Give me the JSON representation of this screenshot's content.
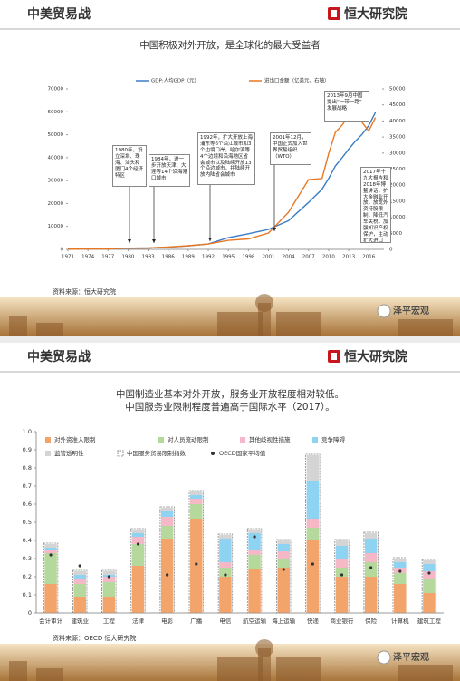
{
  "slides": [
    {
      "header_title": "中美贸易战",
      "logo": "恒大研究院",
      "source": "资料来源：恒大研究院",
      "watermark": "泽平宏观"
    },
    {
      "header_title": "中美贸易战",
      "logo": "恒大研究院",
      "source": "资料来源：OECD  恒大研究院",
      "watermark": "泽平宏观"
    }
  ],
  "chart_data": [
    {
      "type": "line",
      "title": "中国积极对外开放，是全球化的最大受益者",
      "x": [
        1971,
        1974,
        1977,
        1980,
        1983,
        1986,
        1989,
        1992,
        1995,
        1998,
        2001,
        2004,
        2007,
        2009,
        2010,
        2011,
        2012,
        2013,
        2014,
        2015,
        2016,
        2017
      ],
      "series": [
        {
          "name": "GDP:人均GDP（元）",
          "color": "#3b7dc4",
          "axis": "y",
          "values": [
            290,
            310,
            340,
            470,
            590,
            960,
            1520,
            2330,
            5090,
            6800,
            8700,
            12500,
            20500,
            26200,
            30900,
            36300,
            39900,
            43700,
            47200,
            50200,
            54000,
            59700
          ]
        },
        {
          "name": "进出口金额（亿美元，右轴）",
          "color": "#e87722",
          "axis": "y2",
          "values": [
            48,
            146,
            148,
            381,
            436,
            739,
            1117,
            1656,
            2809,
            3240,
            5097,
            11546,
            21762,
            22075,
            29740,
            36419,
            38671,
            41590,
            43015,
            39530,
            36856,
            41045
          ]
        }
      ],
      "xlim": [
        1971,
        2018
      ],
      "xticks": [
        1971,
        1974,
        1977,
        1980,
        1983,
        1986,
        1989,
        1992,
        1995,
        1998,
        2001,
        2004,
        2007,
        2010,
        2013,
        2016
      ],
      "ylim": [
        0,
        70000
      ],
      "yticks": [
        0,
        10000,
        20000,
        30000,
        40000,
        50000,
        60000,
        70000
      ],
      "y2lim": [
        0,
        50000
      ],
      "y2ticks": [
        0,
        5000,
        10000,
        15000,
        20000,
        25000,
        30000,
        35000,
        40000,
        45000,
        50000
      ],
      "legend": "top",
      "annotations": [
        {
          "text": "1980年，设立深圳、珠海、汕头和厦门4个经济特区"
        },
        {
          "text": "1984年，进一步开放天津、大连等14个沿海港口城市"
        },
        {
          "text": "1992年，扩大开放上海浦东等6个沿江城市和3个边境口岸，哈尔滨等4个边境和沿海地区省会城市以及陆续开放13个沿边城市，并陆续开放内陆省会城市"
        },
        {
          "text": "2001年12月，中国正式加入世界贸易组织（WTO）"
        },
        {
          "text": "2013年9月中国提出“一带一路”发展战略"
        },
        {
          "text": "2017年十九大报告和2018年博鳌讲话，扩大金融业开放，放宽外资持股限制，降低汽车关税，加强知识产权保护，主动扩大进口"
        }
      ]
    },
    {
      "type": "stacked_bar",
      "title": [
        "中国制造业基本对外开放，服务业开放程度相对较低。",
        "中国服务业限制程度普遍高于国际水平（2017）。"
      ],
      "categories": [
        "会计审计",
        "建筑业",
        "工程",
        "法律",
        "电影",
        "广播",
        "电信",
        "航空运输",
        "海上运输",
        "快递",
        "商业银行",
        "保险",
        "计算机",
        "建筑工程"
      ],
      "series": [
        {
          "name": "对外资准入限制",
          "color": "#f2a46b",
          "values": [
            0.16,
            0.09,
            0.09,
            0.26,
            0.41,
            0.52,
            0.2,
            0.24,
            0.25,
            0.4,
            0.2,
            0.2,
            0.16,
            0.11
          ]
        },
        {
          "name": "对人员流动限制",
          "color": "#b5d99c",
          "values": [
            0.17,
            0.07,
            0.08,
            0.12,
            0.07,
            0.08,
            0.05,
            0.08,
            0.05,
            0.07,
            0.05,
            0.08,
            0.06,
            0.08
          ]
        },
        {
          "name": "其他歧视性措施",
          "color": "#f4b8c6",
          "values": [
            0.02,
            0.03,
            0.03,
            0.04,
            0.05,
            0.03,
            0.03,
            0.03,
            0.04,
            0.05,
            0.05,
            0.05,
            0.03,
            0.04
          ]
        },
        {
          "name": "竞争障碍",
          "color": "#8fd3f2",
          "values": [
            0.01,
            0.02,
            0.01,
            0.02,
            0.03,
            0.02,
            0.13,
            0.09,
            0.04,
            0.21,
            0.07,
            0.08,
            0.03,
            0.04
          ]
        },
        {
          "name": "监管透明性",
          "color": "#d4d4d4",
          "values": [
            0.02,
            0.02,
            0.02,
            0.02,
            0.02,
            0.02,
            0.02,
            0.02,
            0.02,
            0.14,
            0.03,
            0.03,
            0.02,
            0.02
          ]
        }
      ],
      "index": {
        "name": "中国服务贸易限制指数",
        "values": [
          0.38,
          0.23,
          0.23,
          0.46,
          0.58,
          0.67,
          0.43,
          0.46,
          0.4,
          0.87,
          0.4,
          0.44,
          0.3,
          0.29
        ]
      },
      "oecd": {
        "name": "OECD国家平均值",
        "color": "#333333",
        "values": [
          0.32,
          0.26,
          0.2,
          0.38,
          0.21,
          0.27,
          0.21,
          0.42,
          0.24,
          0.27,
          0.21,
          0.25,
          0.23,
          0.22
        ]
      },
      "ylim": [
        0,
        1
      ],
      "yticks": [
        0,
        0.1,
        0.2,
        0.3,
        0.4,
        0.5,
        0.6,
        0.7,
        0.8,
        0.9,
        {
          "value": 1,
          "label": "1.0"
        }
      ],
      "grid": false
    }
  ]
}
